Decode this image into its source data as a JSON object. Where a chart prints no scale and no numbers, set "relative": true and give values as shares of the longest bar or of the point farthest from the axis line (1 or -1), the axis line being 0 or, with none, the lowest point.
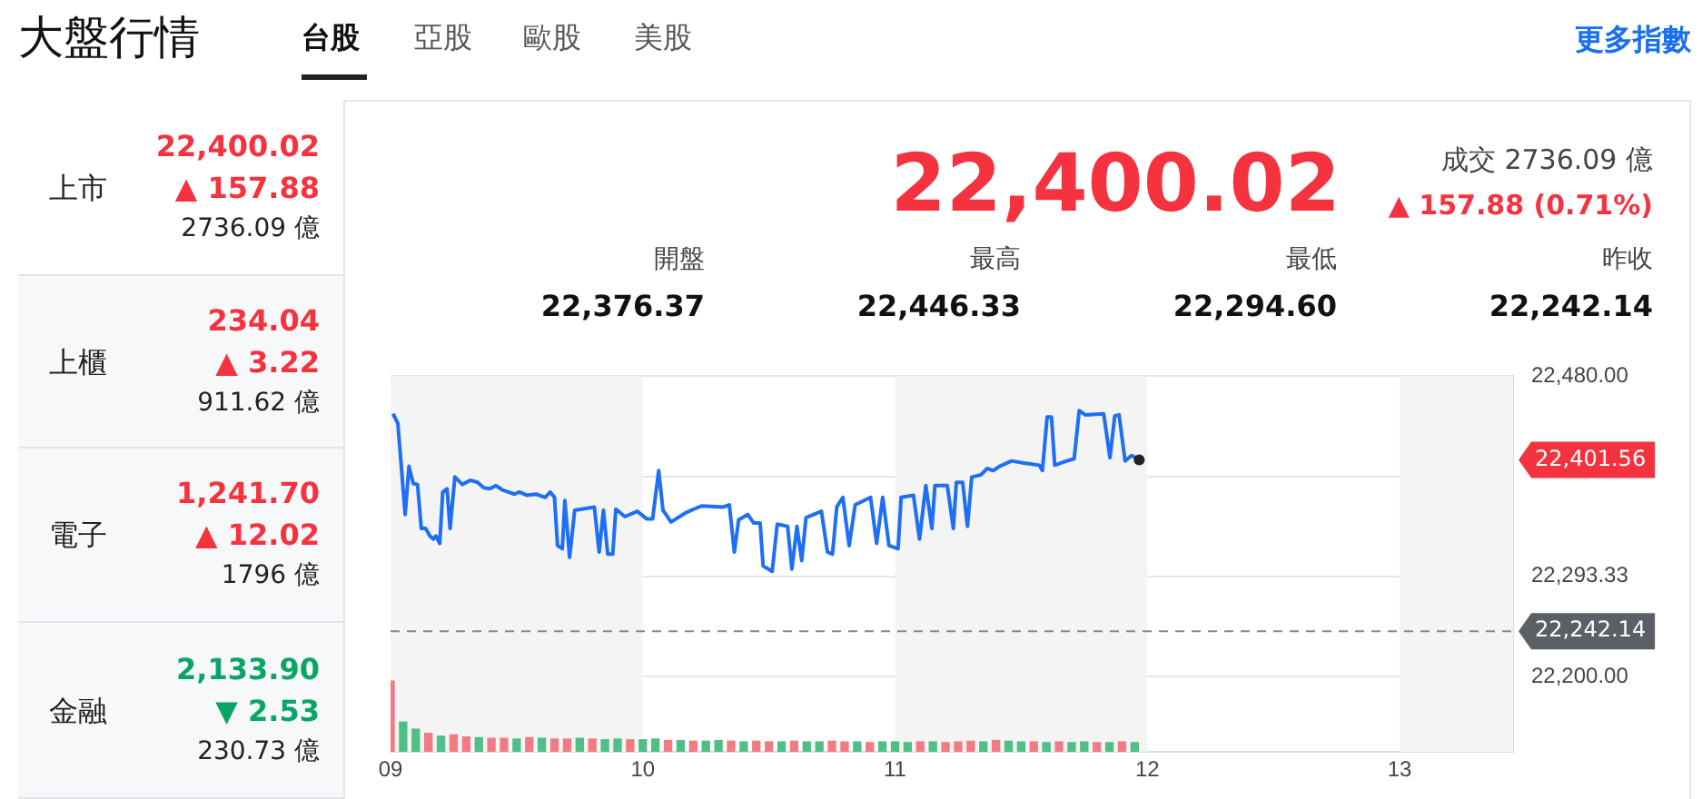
{
  "chart_data": [
    {
      "type": "line",
      "title": "大盤行情",
      "annotations": [
        "台股",
        "亞股",
        "歐股",
        "美股",
        "更多指數",
        "上市",
        "22,400.02",
        "▲ 157.88",
        "2736.09 億",
        "上櫃",
        "234.04",
        "▲ 3.22",
        "911.62 億",
        "電子",
        "1,241.70",
        "▲ 12.02",
        "1796 億",
        "金融",
        "2,133.90",
        "▼ 2.53",
        "230.73 億",
        "22,400.02",
        "成交 2736.09 億",
        "▲ 157.88 (0.71%)",
        "開盤",
        "22,376.37",
        "最高",
        "22,446.33",
        "最低",
        "22,294.60",
        "昨收",
        "22,242.14",
        "22,401.56"
      ],
      "series": [
        {
          "color": "#1e6ff5",
          "x": [
            9.01,
            9.029,
            9.058,
            9.073,
            9.09,
            9.107,
            9.122,
            9.139,
            9.156,
            9.17,
            9.18,
            9.195,
            9.207,
            9.224,
            9.236,
            9.255,
            9.285,
            9.316,
            9.345,
            9.37,
            9.394,
            9.418,
            9.443,
            9.467,
            9.491,
            9.511,
            9.54,
            9.577,
            9.613,
            9.633,
            9.65,
            9.662,
            9.681,
            9.691,
            9.71,
            9.73,
            9.808,
            9.827,
            9.844,
            9.861,
            9.881,
            9.893,
            9.929,
            9.978,
            10.015,
            10.039,
            10.063,
            10.08,
            10.112,
            10.173,
            10.202,
            10.234,
            10.319,
            10.343,
            10.363,
            10.38,
            10.416,
            10.44,
            10.465,
            10.477,
            10.513,
            10.533,
            10.574,
            10.591,
            10.611,
            10.63,
            10.647,
            10.708,
            10.732,
            10.752,
            10.769,
            10.793,
            10.818,
            10.842,
            10.903,
            10.927,
            10.951,
            10.976,
            11.012,
            11.024,
            11.073,
            11.097,
            11.122,
            11.146,
            11.158,
            11.207,
            11.231,
            11.243,
            11.268,
            11.287,
            11.304,
            11.341,
            11.365,
            11.389,
            11.414,
            11.462,
            11.511,
            11.572,
            11.584,
            11.603,
            11.62,
            11.633,
            11.681,
            11.71,
            11.73,
            11.754,
            11.827,
            11.852,
            11.871,
            11.888,
            11.912,
            11.937,
            11.954,
            11.968
          ],
          "values": [
            22445,
            22436,
            22351,
            22396,
            22380,
            22379,
            22338,
            22338,
            22331,
            22328,
            22331,
            22324,
            22372,
            22375,
            22338,
            22386,
            22379,
            22383,
            22381,
            22376,
            22375,
            22378,
            22374,
            22372,
            22370,
            22372,
            22369,
            22370,
            22367,
            22372,
            22367,
            22322,
            22319,
            22364,
            22311,
            22355,
            22358,
            22316,
            22355,
            22314,
            22314,
            22356,
            22349,
            22354,
            22347,
            22347,
            22392,
            22355,
            22344,
            22353,
            22356,
            22359,
            22358,
            22360,
            22316,
            22346,
            22351,
            22343,
            22343,
            22303,
            22298,
            22342,
            22340,
            22300,
            22340,
            22308,
            22348,
            22354,
            22316,
            22314,
            22358,
            22367,
            22322,
            22360,
            22367,
            22324,
            22367,
            22322,
            22319,
            22367,
            22369,
            22328,
            22378,
            22338,
            22378,
            22378,
            22338,
            22381,
            22381,
            22340,
            22386,
            22388,
            22394,
            22392,
            22396,
            22401,
            22399,
            22397,
            22392,
            22442,
            22442,
            22397,
            22401,
            22403,
            22448,
            22444,
            22445,
            22404,
            22443,
            22444,
            22401,
            22406,
            22404,
            22402
          ]
        }
      ],
      "xlim": [
        9,
        13.45
      ],
      "xticks": [
        {
          "value": 9,
          "label": "09"
        },
        {
          "value": 10,
          "label": "10"
        },
        {
          "value": 11,
          "label": "11"
        },
        {
          "value": 12,
          "label": "12"
        },
        {
          "value": 13,
          "label": "13"
        }
      ],
      "ylim": [
        22129.6,
        22480
      ],
      "yticks": [
        {
          "value": 22200,
          "label": "22,200.00"
        },
        {
          "value": 22293.33,
          "label": "22,293.33"
        },
        {
          "value": 22386.67,
          "label": null
        },
        {
          "value": 22480,
          "label": "22,480.00"
        }
      ],
      "grid": "y",
      "marker": "none",
      "line_style": "solid",
      "ref_lines": [
        {
          "axis": "y",
          "value": 22242.14,
          "label": "22,242.14",
          "color": "#888888",
          "line_style": "dashed"
        }
      ],
      "bands": [
        {
          "axis": "x",
          "from": 9,
          "to": 10,
          "color": "#f4f4f4"
        },
        {
          "axis": "x",
          "from": 11,
          "to": 12,
          "color": "#f4f4f4"
        },
        {
          "axis": "x",
          "from": 13,
          "to": 13.45,
          "color": "#f4f4f4"
        }
      ]
    },
    {
      "type": "bar",
      "relative": true,
      "tick_labels": false,
      "xlim": [
        9,
        13.45
      ],
      "x": [
        9,
        9.05,
        9.1,
        9.15,
        9.2,
        9.25,
        9.3,
        9.35,
        9.4,
        9.45,
        9.5,
        9.55,
        9.6,
        9.65,
        9.7,
        9.75,
        9.8,
        9.85,
        9.9,
        9.95,
        10,
        10.05,
        10.1,
        10.15,
        10.2,
        10.25,
        10.3,
        10.35,
        10.4,
        10.45,
        10.5,
        10.55,
        10.6,
        10.65,
        10.7,
        10.75,
        10.8,
        10.85,
        10.9,
        10.95,
        11,
        11.05,
        11.1,
        11.15,
        11.2,
        11.25,
        11.3,
        11.35,
        11.4,
        11.45,
        11.5,
        11.55,
        11.6,
        11.65,
        11.7,
        11.75,
        11.8,
        11.85,
        11.9,
        11.95
      ],
      "values": [
        1,
        0.42,
        0.32,
        0.26,
        0.22,
        0.24,
        0.21,
        0.2,
        0.19,
        0.19,
        0.18,
        0.2,
        0.19,
        0.18,
        0.18,
        0.19,
        0.18,
        0.17,
        0.18,
        0.17,
        0.17,
        0.18,
        0.16,
        0.16,
        0.15,
        0.15,
        0.16,
        0.15,
        0.14,
        0.15,
        0.14,
        0.14,
        0.15,
        0.14,
        0.14,
        0.15,
        0.14,
        0.14,
        0.13,
        0.14,
        0.14,
        0.13,
        0.14,
        0.14,
        0.13,
        0.14,
        0.15,
        0.14,
        0.16,
        0.15,
        0.14,
        0.14,
        0.13,
        0.14,
        0.13,
        0.14,
        0.13,
        0.13,
        0.14,
        0.13
      ],
      "colors": [
        "#f27b83",
        "#4fbf85",
        "#4fbf85",
        "#f27b83",
        "#4fbf85",
        "#f27b83",
        "#f27b83",
        "#4fbf85",
        "#f27b83",
        "#f27b83",
        "#4fbf85",
        "#f27b83",
        "#4fbf85",
        "#f27b83",
        "#f27b83",
        "#4fbf85",
        "#f27b83",
        "#4fbf85",
        "#4fbf85",
        "#f27b83",
        "#4fbf85",
        "#4fbf85",
        "#f27b83",
        "#4fbf85",
        "#f27b83",
        "#4fbf85",
        "#4fbf85",
        "#f27b83",
        "#4fbf85",
        "#f27b83",
        "#f27b83",
        "#4fbf85",
        "#f27b83",
        "#4fbf85",
        "#4fbf85",
        "#f27b83",
        "#f27b83",
        "#4fbf85",
        "#f27b83",
        "#4fbf85",
        "#4fbf85",
        "#4fbf85",
        "#f27b83",
        "#4fbf85",
        "#f27b83",
        "#f27b83",
        "#f27b83",
        "#4fbf85",
        "#f27b83",
        "#4fbf85",
        "#4fbf85",
        "#f27b83",
        "#4fbf85",
        "#f27b83",
        "#4fbf85",
        "#4fbf85",
        "#f27b83",
        "#4fbf85",
        "#f27b83",
        "#4fbf85"
      ]
    }
  ]
}
